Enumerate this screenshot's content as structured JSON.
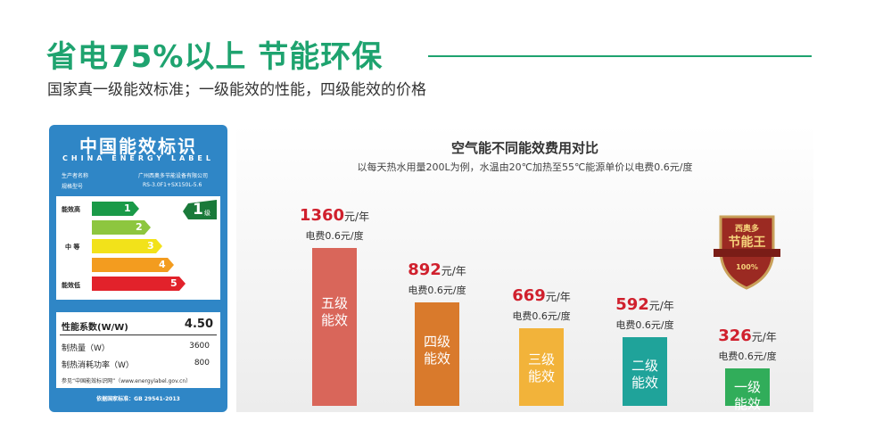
{
  "header": {
    "title": "省电75%以上 节能环保",
    "subtitle": "国家真一级能效标准；一级能效的性能，四级能效的价格"
  },
  "label": {
    "title": "中国能效标识",
    "title_en": "CHINA ENERGY LABEL",
    "maker_key": "生产者名称",
    "maker": "广州西奥多节能设备有限公司",
    "model_key": "规格型号",
    "model": "RS-3.0F1+SX150L-5.6",
    "levels": [
      "能效高",
      "中 等",
      "能效低"
    ],
    "grades": [
      "1",
      "2",
      "3",
      "4",
      "5"
    ],
    "rating": "1",
    "rating_unit": "级",
    "cop_key": "性能系数(W/W)",
    "cop": "4.50",
    "heat_key": "制热量（W）",
    "heat": "3600",
    "power_key": "制热消耗功率（W）",
    "power": "800",
    "ref": "参见“中国能效标识网”（www.energylabel.gov.cn）",
    "standard": "依据国家标准：GB 29541-2013"
  },
  "badge": {
    "brand": "西奥多",
    "name": "节能王",
    "percent": "100%"
  },
  "chart_data": {
    "type": "bar",
    "title": "空气能不同能效费用对比",
    "subtitle": "以每天热水用量200L为例，水温由20℃加热至55℃能源单价以电费0.6元/度",
    "categories": [
      "五级能效",
      "四级能效",
      "三级能效",
      "二级能效",
      "一级能效"
    ],
    "values": [
      1360,
      892,
      669,
      592,
      326
    ],
    "unit": "元/年",
    "note": "电费0.6元/度",
    "colors": [
      "#d9665a",
      "#d97a2c",
      "#f2b33a",
      "#1fa39a",
      "#31ad5a"
    ]
  }
}
